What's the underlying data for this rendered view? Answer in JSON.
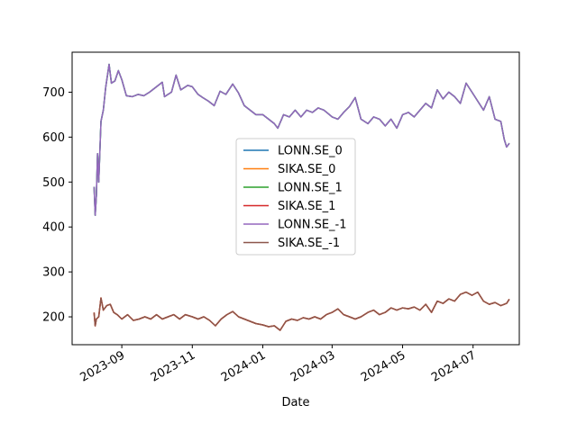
{
  "chart_data": {
    "type": "line",
    "title": "",
    "xlabel": "Date",
    "ylabel": "",
    "x_range": [
      "2023-07-20",
      "2024-08-10"
    ],
    "ylim": [
      138,
      789
    ],
    "grid": false,
    "legend_placement": "center",
    "x_ticks": [
      {
        "date": "2023-09-01",
        "label": "2023-09"
      },
      {
        "date": "2023-11-01",
        "label": "2023-11"
      },
      {
        "date": "2024-01-01",
        "label": "2024-01"
      },
      {
        "date": "2024-03-01",
        "label": "2024-03"
      },
      {
        "date": "2024-05-01",
        "label": "2024-05"
      },
      {
        "date": "2024-07-01",
        "label": "2024-07"
      }
    ],
    "y_ticks": [
      200,
      300,
      400,
      500,
      600,
      700
    ],
    "series": [
      {
        "name": "LONN.SE_0",
        "color": "#1f77b4",
        "group": "LONN"
      },
      {
        "name": "SIKA.SE_0",
        "color": "#ff7f0e",
        "group": "SIKA"
      },
      {
        "name": "LONN.SE_1",
        "color": "#2ca02c",
        "group": "LONN"
      },
      {
        "name": "SIKA.SE_1",
        "color": "#d62728",
        "group": "SIKA"
      },
      {
        "name": "LONN.SE_-1",
        "color": "#9467bd",
        "group": "LONN"
      },
      {
        "name": "SIKA.SE_-1",
        "color": "#8c564b",
        "group": "SIKA"
      }
    ],
    "lonn_points": [
      [
        "2023-08-08",
        488
      ],
      [
        "2023-08-09",
        426
      ],
      [
        "2023-08-10",
        470
      ],
      [
        "2023-08-11",
        563
      ],
      [
        "2023-08-12",
        500
      ],
      [
        "2023-08-14",
        635
      ],
      [
        "2023-08-16",
        660
      ],
      [
        "2023-08-18",
        710
      ],
      [
        "2023-08-21",
        762
      ],
      [
        "2023-08-23",
        720
      ],
      [
        "2023-08-26",
        725
      ],
      [
        "2023-08-29",
        748
      ],
      [
        "2023-09-01",
        728
      ],
      [
        "2023-09-05",
        692
      ],
      [
        "2023-09-10",
        690
      ],
      [
        "2023-09-15",
        695
      ],
      [
        "2023-09-20",
        692
      ],
      [
        "2023-09-25",
        700
      ],
      [
        "2023-10-01",
        712
      ],
      [
        "2023-10-06",
        722
      ],
      [
        "2023-10-08",
        690
      ],
      [
        "2023-10-14",
        700
      ],
      [
        "2023-10-18",
        738
      ],
      [
        "2023-10-22",
        705
      ],
      [
        "2023-10-28",
        715
      ],
      [
        "2023-11-01",
        712
      ],
      [
        "2023-11-06",
        695
      ],
      [
        "2023-11-10",
        688
      ],
      [
        "2023-11-15",
        680
      ],
      [
        "2023-11-20",
        670
      ],
      [
        "2023-11-25",
        702
      ],
      [
        "2023-11-30",
        695
      ],
      [
        "2023-12-06",
        718
      ],
      [
        "2023-12-11",
        698
      ],
      [
        "2023-12-16",
        670
      ],
      [
        "2023-12-21",
        660
      ],
      [
        "2023-12-26",
        650
      ],
      [
        "2024-01-01",
        650
      ],
      [
        "2024-01-06",
        640
      ],
      [
        "2024-01-11",
        630
      ],
      [
        "2024-01-14",
        620
      ],
      [
        "2024-01-19",
        650
      ],
      [
        "2024-01-24",
        645
      ],
      [
        "2024-01-29",
        660
      ],
      [
        "2024-02-03",
        645
      ],
      [
        "2024-02-08",
        660
      ],
      [
        "2024-02-13",
        655
      ],
      [
        "2024-02-18",
        665
      ],
      [
        "2024-02-23",
        660
      ],
      [
        "2024-03-01",
        645
      ],
      [
        "2024-03-06",
        640
      ],
      [
        "2024-03-11",
        655
      ],
      [
        "2024-03-16",
        668
      ],
      [
        "2024-03-21",
        688
      ],
      [
        "2024-03-26",
        640
      ],
      [
        "2024-04-01",
        630
      ],
      [
        "2024-04-06",
        645
      ],
      [
        "2024-04-11",
        640
      ],
      [
        "2024-04-16",
        625
      ],
      [
        "2024-04-21",
        640
      ],
      [
        "2024-04-26",
        620
      ],
      [
        "2024-05-01",
        650
      ],
      [
        "2024-05-06",
        655
      ],
      [
        "2024-05-11",
        645
      ],
      [
        "2024-05-16",
        660
      ],
      [
        "2024-05-21",
        675
      ],
      [
        "2024-05-26",
        665
      ],
      [
        "2024-05-31",
        705
      ],
      [
        "2024-06-05",
        685
      ],
      [
        "2024-06-10",
        700
      ],
      [
        "2024-06-15",
        690
      ],
      [
        "2024-06-20",
        675
      ],
      [
        "2024-06-25",
        720
      ],
      [
        "2024-06-30",
        700
      ],
      [
        "2024-07-05",
        680
      ],
      [
        "2024-07-10",
        660
      ],
      [
        "2024-07-15",
        690
      ],
      [
        "2024-07-20",
        640
      ],
      [
        "2024-07-25",
        635
      ],
      [
        "2024-07-28",
        595
      ],
      [
        "2024-07-30",
        578
      ],
      [
        "2024-08-01",
        585
      ]
    ],
    "sika_points": [
      [
        "2023-08-08",
        208
      ],
      [
        "2023-08-09",
        180
      ],
      [
        "2023-08-10",
        195
      ],
      [
        "2023-08-12",
        200
      ],
      [
        "2023-08-14",
        242
      ],
      [
        "2023-08-16",
        215
      ],
      [
        "2023-08-19",
        225
      ],
      [
        "2023-08-22",
        228
      ],
      [
        "2023-08-25",
        210
      ],
      [
        "2023-08-28",
        205
      ],
      [
        "2023-09-01",
        195
      ],
      [
        "2023-09-06",
        205
      ],
      [
        "2023-09-11",
        192
      ],
      [
        "2023-09-16",
        195
      ],
      [
        "2023-09-21",
        200
      ],
      [
        "2023-09-26",
        195
      ],
      [
        "2023-10-01",
        205
      ],
      [
        "2023-10-06",
        195
      ],
      [
        "2023-10-11",
        200
      ],
      [
        "2023-10-16",
        205
      ],
      [
        "2023-10-21",
        195
      ],
      [
        "2023-10-26",
        205
      ],
      [
        "2023-11-01",
        200
      ],
      [
        "2023-11-06",
        195
      ],
      [
        "2023-11-11",
        200
      ],
      [
        "2023-11-16",
        192
      ],
      [
        "2023-11-21",
        180
      ],
      [
        "2023-11-26",
        195
      ],
      [
        "2023-12-01",
        205
      ],
      [
        "2023-12-06",
        212
      ],
      [
        "2023-12-11",
        200
      ],
      [
        "2023-12-16",
        195
      ],
      [
        "2023-12-21",
        190
      ],
      [
        "2023-12-26",
        185
      ],
      [
        "2024-01-01",
        182
      ],
      [
        "2024-01-06",
        178
      ],
      [
        "2024-01-11",
        180
      ],
      [
        "2024-01-16",
        170
      ],
      [
        "2024-01-21",
        190
      ],
      [
        "2024-01-26",
        195
      ],
      [
        "2024-01-31",
        192
      ],
      [
        "2024-02-05",
        198
      ],
      [
        "2024-02-10",
        195
      ],
      [
        "2024-02-15",
        200
      ],
      [
        "2024-02-20",
        195
      ],
      [
        "2024-02-25",
        205
      ],
      [
        "2024-03-01",
        210
      ],
      [
        "2024-03-06",
        218
      ],
      [
        "2024-03-11",
        205
      ],
      [
        "2024-03-16",
        200
      ],
      [
        "2024-03-21",
        195
      ],
      [
        "2024-03-26",
        200
      ],
      [
        "2024-04-01",
        210
      ],
      [
        "2024-04-06",
        215
      ],
      [
        "2024-04-11",
        205
      ],
      [
        "2024-04-16",
        210
      ],
      [
        "2024-04-21",
        220
      ],
      [
        "2024-04-26",
        215
      ],
      [
        "2024-05-01",
        220
      ],
      [
        "2024-05-06",
        218
      ],
      [
        "2024-05-11",
        222
      ],
      [
        "2024-05-16",
        215
      ],
      [
        "2024-05-21",
        228
      ],
      [
        "2024-05-26",
        210
      ],
      [
        "2024-05-31",
        235
      ],
      [
        "2024-06-05",
        230
      ],
      [
        "2024-06-10",
        240
      ],
      [
        "2024-06-15",
        235
      ],
      [
        "2024-06-20",
        250
      ],
      [
        "2024-06-25",
        255
      ],
      [
        "2024-06-30",
        248
      ],
      [
        "2024-07-05",
        255
      ],
      [
        "2024-07-10",
        235
      ],
      [
        "2024-07-15",
        228
      ],
      [
        "2024-07-20",
        232
      ],
      [
        "2024-07-25",
        225
      ],
      [
        "2024-07-30",
        230
      ],
      [
        "2024-08-01",
        238
      ]
    ]
  }
}
